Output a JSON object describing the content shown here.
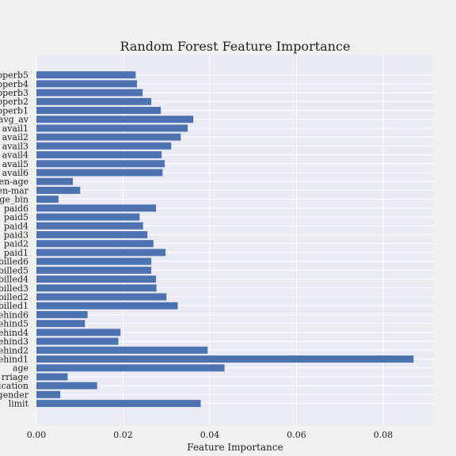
{
  "chart_data": {
    "type": "bar",
    "orientation": "horizontal",
    "title": "Random Forest Feature Importance",
    "xlabel": "Feature Importance",
    "ylabel": "",
    "xlim": [
      0,
      0.0915
    ],
    "x_ticks": [
      "0.00",
      "0.02",
      "0.04",
      "0.06",
      "0.08"
    ],
    "grid": true,
    "bar_color": "#4c72b0",
    "plot_background": "#eaeaf2",
    "categories": [
      "limit",
      "gender",
      "ucation",
      "rriage",
      "age",
      "ehind1",
      "ehind2",
      "ehind3",
      "ehind4",
      "ehind5",
      "ehind6",
      "billed1",
      "billed2",
      "billed3",
      "billed4",
      "billed5",
      "billed6",
      "paid1",
      "paid2",
      "paid3",
      "paid4",
      "paid5",
      "paid6",
      "ge_bin",
      "en-mar",
      "en-age",
      "avail6",
      "avail5",
      "avail4",
      "avail3",
      "avail2",
      "avail1",
      "avg_av",
      "pperb1",
      "pperb2",
      "pperb3",
      "pperb4",
      "pperb5"
    ],
    "values": [
      0.0379,
      0.0055,
      0.014,
      0.0072,
      0.0434,
      0.087,
      0.0395,
      0.0189,
      0.0194,
      0.0112,
      0.0118,
      0.0326,
      0.03,
      0.0277,
      0.0276,
      0.0265,
      0.0265,
      0.0298,
      0.027,
      0.0256,
      0.0246,
      0.0238,
      0.0276,
      0.0051,
      0.0101,
      0.0084,
      0.0291,
      0.0296,
      0.0289,
      0.0311,
      0.0333,
      0.0349,
      0.0362,
      0.0287,
      0.0265,
      0.0245,
      0.0232,
      0.0229
    ]
  }
}
